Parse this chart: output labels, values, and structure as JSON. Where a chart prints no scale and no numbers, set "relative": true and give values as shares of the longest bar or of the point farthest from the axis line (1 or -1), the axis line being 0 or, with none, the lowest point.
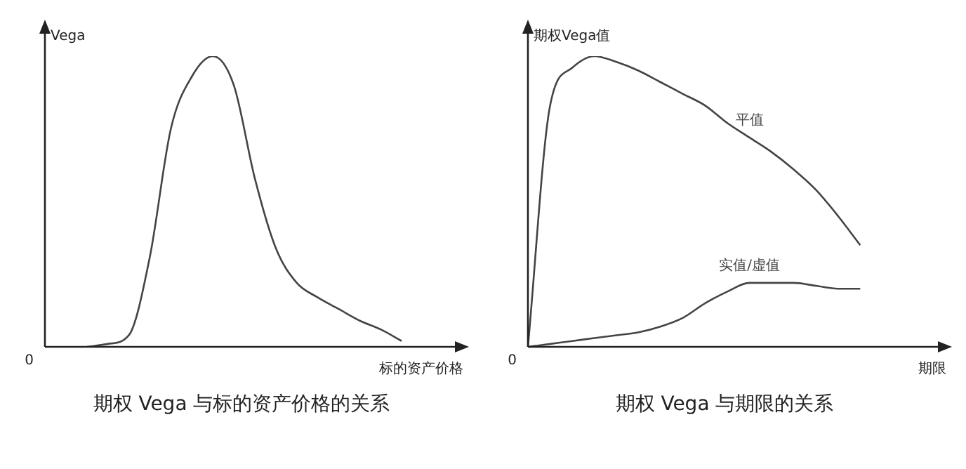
{
  "chart_data": [
    {
      "type": "line",
      "title": "期权 Vega 与标的资产价格的关系",
      "xlabel": "标的资产价格",
      "ylabel": "Vega",
      "relative": true,
      "marker": "none",
      "line_style": "solid",
      "annotations": [
        "0"
      ],
      "categories": [
        null,
        null,
        null,
        null,
        null,
        null,
        null,
        null,
        null,
        null,
        null,
        null,
        null,
        null,
        null,
        null,
        null,
        null,
        null,
        null
      ],
      "series": [
        {
          "color": "#444444",
          "values": [
            null,
            null,
            0,
            0.01,
            0.04,
            0.31,
            0.75,
            0.93,
            1,
            0.9,
            0.58,
            0.34,
            0.22,
            0.17,
            0.13,
            0.09,
            0.06,
            0.02,
            null,
            null
          ]
        }
      ]
    },
    {
      "type": "line",
      "title": "期权 Vega 与期限的关系",
      "xlabel": "期限",
      "ylabel": "期权Vega值",
      "relative": true,
      "marker": "none",
      "line_style": "solid",
      "annotations": [
        "0"
      ],
      "categories": [
        null,
        null,
        null,
        null,
        null,
        null,
        null,
        null,
        null,
        null,
        null,
        null,
        null,
        null,
        null,
        null,
        null,
        null,
        null
      ],
      "series": [
        {
          "name": "平值",
          "color": "#444444",
          "values": [
            0,
            0.83,
            0.96,
            1,
            0.98,
            0.95,
            0.91,
            0.87,
            0.83,
            0.77,
            0.72,
            0.67,
            0.61,
            0.54,
            0.45,
            0.35,
            null,
            null,
            null
          ]
        },
        {
          "name": "实值/虚值",
          "color": "#444444",
          "values": [
            0,
            0.01,
            0.02,
            0.03,
            0.04,
            0.05,
            0.07,
            0.1,
            0.15,
            0.19,
            0.22,
            0.22,
            0.22,
            0.21,
            0.2,
            0.2,
            null,
            null,
            null
          ]
        }
      ]
    }
  ]
}
